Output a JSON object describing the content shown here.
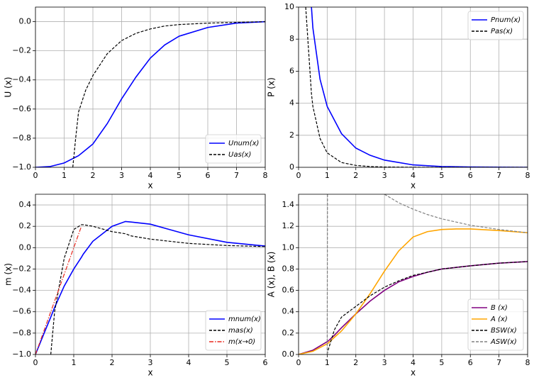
{
  "chart_data": [
    {
      "type": "line",
      "xlabel": "x",
      "ylabel": "U (x)",
      "x": [
        0,
        0.5,
        1,
        1.3,
        1.4,
        1.5,
        1.75,
        2,
        2.5,
        3,
        3.5,
        4,
        4.5,
        5,
        6,
        7,
        8
      ],
      "series": [
        {
          "name": "Unum(x)",
          "color": "#0000ff",
          "dash": "solid",
          "values": [
            -1,
            -0.995,
            -0.97,
            -0.94,
            -0.93,
            -0.92,
            -0.88,
            -0.84,
            -0.7,
            -0.53,
            -0.38,
            -0.25,
            -0.16,
            -0.1,
            -0.04,
            -0.01,
            0
          ]
        },
        {
          "name": "Uas(x)",
          "color": "#000000",
          "dash": "dashed",
          "values": [
            null,
            null,
            null,
            -1,
            -0.8,
            -0.62,
            -0.47,
            -0.37,
            -0.22,
            -0.13,
            -0.08,
            -0.05,
            -0.03,
            -0.02,
            -0.01,
            -0.005,
            0
          ]
        }
      ],
      "xlim": [
        0,
        8
      ],
      "xticks": [
        0,
        1,
        2,
        3,
        4,
        5,
        6,
        7,
        8
      ],
      "ylim": [
        -1,
        0.1
      ],
      "yticks": [
        {
          "value": -1,
          "label": "−1.0"
        },
        {
          "value": -0.8,
          "label": "−0.8"
        },
        {
          "value": -0.6,
          "label": "−0.6"
        },
        {
          "value": -0.4,
          "label": "−0.4"
        },
        {
          "value": -0.2,
          "label": "−0.2"
        },
        {
          "value": 0,
          "label": "0.0"
        }
      ],
      "grid": true,
      "legend": "lower right"
    },
    {
      "type": "line",
      "xlabel": "x",
      "ylabel": "P (x)",
      "x": [
        0.25,
        0.45,
        0.5,
        0.75,
        1,
        1.5,
        2,
        2.5,
        3,
        4,
        5,
        6,
        7,
        8
      ],
      "series": [
        {
          "name": "Pnum(x)",
          "color": "#0000ff",
          "dash": "solid",
          "values": [
            null,
            10,
            8.7,
            5.5,
            3.8,
            2.1,
            1.2,
            0.75,
            0.45,
            0.15,
            0.05,
            0.02,
            0.01,
            0
          ]
        },
        {
          "name": "Pas(x)",
          "color": "#000000",
          "dash": "dashed",
          "values": [
            10,
            4.6,
            3.8,
            1.8,
            0.9,
            0.3,
            0.12,
            0.05,
            0.02,
            0.005,
            0,
            0,
            0,
            0
          ]
        }
      ],
      "xlim": [
        0,
        8
      ],
      "xticks": [
        0,
        1,
        2,
        3,
        4,
        5,
        6,
        7,
        8
      ],
      "ylim": [
        0,
        10
      ],
      "yticks": [
        0,
        2,
        4,
        6,
        8,
        10
      ],
      "grid": true,
      "legend": "upper right"
    },
    {
      "type": "line",
      "xlabel": "x",
      "ylabel": "m (x)",
      "x": [
        0,
        0.25,
        0.4,
        0.5,
        0.75,
        1,
        1.2,
        1.25,
        1.5,
        2,
        2.35,
        2.5,
        3,
        3.5,
        4,
        5,
        6
      ],
      "series": [
        {
          "name": "mnum(x)",
          "color": "#0000ff",
          "dash": "solid",
          "values": [
            -1,
            -0.78,
            -0.65,
            -0.56,
            -0.36,
            -0.2,
            -0.09,
            -0.06,
            0.06,
            0.2,
            0.245,
            0.24,
            0.22,
            0.17,
            0.12,
            0.05,
            0.015
          ]
        },
        {
          "name": "mas(x)",
          "color": "#000000",
          "dash": "dashed",
          "values": [
            null,
            null,
            -1,
            -0.6,
            -0.1,
            0.17,
            0.215,
            0.215,
            0.2,
            0.15,
            0.13,
            0.11,
            0.08,
            0.06,
            0.04,
            0.02,
            0.01
          ]
        },
        {
          "name": "m(x→0)",
          "color": "#e8281e",
          "dash": "dashdot",
          "values": [
            -1,
            -0.75,
            -0.6,
            -0.5,
            -0.25,
            0,
            0.2,
            null,
            null,
            null,
            null,
            null,
            null,
            null,
            null,
            null,
            null
          ]
        }
      ],
      "xlim": [
        0,
        6
      ],
      "xticks": [
        0,
        1,
        2,
        3,
        4,
        5,
        6
      ],
      "ylim": [
        -1,
        0.5
      ],
      "yticks": [
        {
          "value": -1,
          "label": "−1.0"
        },
        {
          "value": -0.8,
          "label": "−0.8"
        },
        {
          "value": -0.6,
          "label": "−0.6"
        },
        {
          "value": -0.4,
          "label": "−0.4"
        },
        {
          "value": -0.2,
          "label": "−0.2"
        },
        {
          "value": 0,
          "label": "0.0"
        },
        {
          "value": 0.2,
          "label": "0.2"
        },
        {
          "value": 0.4,
          "label": "0.4"
        }
      ],
      "grid": true,
      "legend": "lower right"
    },
    {
      "type": "line",
      "xlabel": "x",
      "ylabel": "A (x), B (x)",
      "x": [
        0,
        0.5,
        1,
        1.01,
        1.25,
        1.5,
        2,
        2.5,
        3,
        3.5,
        4,
        4.5,
        5,
        5.5,
        6,
        7,
        8
      ],
      "series": [
        {
          "name": "B (x)",
          "color": "#800080",
          "dash": "solid",
          "values": [
            0,
            0.04,
            0.12,
            0.12,
            0.18,
            0.25,
            0.38,
            0.5,
            0.6,
            0.68,
            0.73,
            0.77,
            0.8,
            0.815,
            0.83,
            0.855,
            0.87
          ]
        },
        {
          "name": "A (x)",
          "color": "#ffa500",
          "dash": "solid",
          "values": [
            0,
            0.03,
            0.1,
            0.1,
            0.16,
            0.22,
            0.38,
            0.57,
            0.78,
            0.97,
            1.1,
            1.15,
            1.17,
            1.175,
            1.175,
            1.16,
            1.14
          ]
        },
        {
          "name": "BSW(x)",
          "color": "#000000",
          "dash": "dashed",
          "values": [
            null,
            null,
            0,
            0.02,
            0.23,
            0.35,
            0.45,
            0.55,
            0.63,
            0.69,
            0.74,
            0.77,
            0.8,
            0.815,
            0.83,
            0.855,
            0.87
          ]
        },
        {
          "name": "ASW(x)",
          "color": "#808080",
          "dash": "dashed",
          "values": [
            null,
            null,
            0,
            1.5,
            null,
            null,
            null,
            null,
            1.5,
            1.42,
            1.36,
            1.31,
            1.27,
            1.24,
            1.21,
            1.17,
            1.14
          ]
        }
      ],
      "xlim": [
        0,
        8
      ],
      "xticks": [
        0,
        1,
        2,
        3,
        4,
        5,
        6,
        7,
        8
      ],
      "ylim": [
        0,
        1.5
      ],
      "yticks": [
        {
          "value": 0,
          "label": "0.0"
        },
        {
          "value": 0.2,
          "label": "0.2"
        },
        {
          "value": 0.4,
          "label": "0.4"
        },
        {
          "value": 0.6,
          "label": "0.6"
        },
        {
          "value": 0.8,
          "label": "0.8"
        },
        {
          "value": 1,
          "label": "1.0"
        },
        {
          "value": 1.2,
          "label": "1.2"
        },
        {
          "value": 1.4,
          "label": "1.4"
        }
      ],
      "grid": true,
      "legend": "lower right"
    }
  ]
}
